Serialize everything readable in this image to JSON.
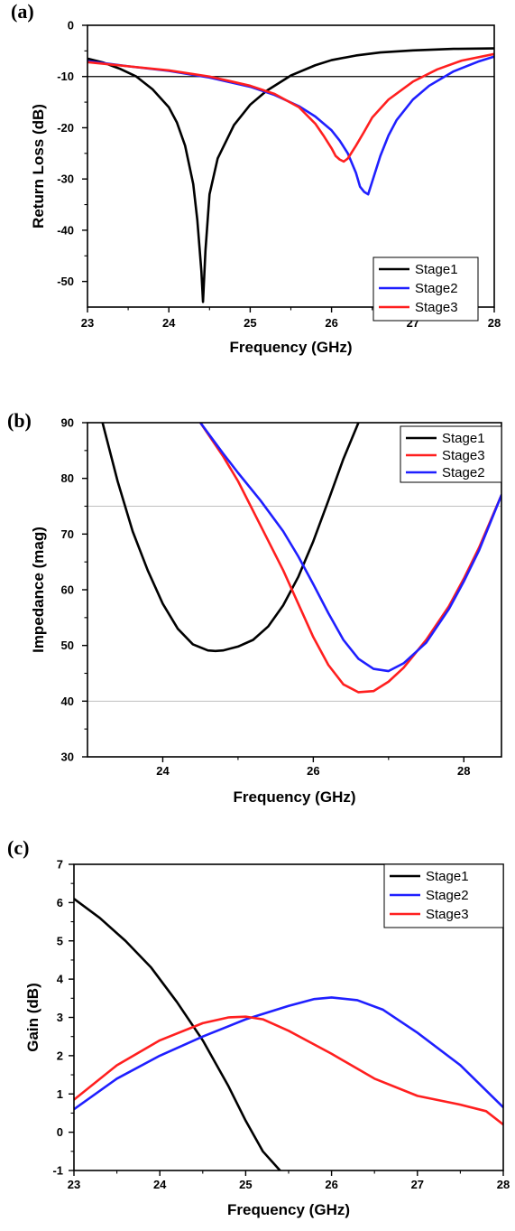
{
  "colors": {
    "stage1": "#000000",
    "stage2": "#1f1fff",
    "stage3": "#ff1f1f",
    "refline": "#bfbfbf"
  },
  "chart_data": [
    {
      "panel": "(a)",
      "type": "line",
      "xlabel": "Frequency (GHz)",
      "ylabel": "Return Loss (dB)",
      "xlim": [
        23,
        28
      ],
      "ylim": [
        -55,
        0
      ],
      "xticks": [
        23,
        24,
        25,
        26,
        27,
        28
      ],
      "yticks": [
        0,
        -10,
        -20,
        -30,
        -40,
        -50
      ],
      "reference_lines": [
        -10
      ],
      "legend_position": "bottom-right",
      "series": [
        {
          "name": "Stage1",
          "color": "#000000",
          "x": [
            23.0,
            23.2,
            23.4,
            23.6,
            23.8,
            24.0,
            24.1,
            24.2,
            24.3,
            24.35,
            24.4,
            24.42,
            24.45,
            24.5,
            24.6,
            24.8,
            25.0,
            25.2,
            25.5,
            25.8,
            26.0,
            26.3,
            26.6,
            27.0,
            27.5,
            28.0
          ],
          "y": [
            -6.5,
            -7.3,
            -8.5,
            -10.0,
            -12.5,
            -16.0,
            -19.0,
            -23.5,
            -31.0,
            -38.0,
            -48.0,
            -54.0,
            -44.0,
            -33.0,
            -26.0,
            -19.5,
            -15.5,
            -12.8,
            -9.8,
            -7.8,
            -6.8,
            -5.9,
            -5.3,
            -4.9,
            -4.6,
            -4.5
          ]
        },
        {
          "name": "Stage2",
          "color": "#1f1fff",
          "x": [
            23.0,
            23.5,
            24.0,
            24.5,
            25.0,
            25.3,
            25.6,
            25.8,
            26.0,
            26.1,
            26.2,
            26.3,
            26.35,
            26.4,
            26.45,
            26.5,
            26.6,
            26.7,
            26.8,
            27.0,
            27.2,
            27.5,
            27.8,
            28.0
          ],
          "y": [
            -7.0,
            -8.0,
            -8.9,
            -10.2,
            -12.0,
            -13.6,
            -15.8,
            -17.8,
            -20.5,
            -22.5,
            -25.0,
            -28.8,
            -31.5,
            -32.5,
            -33.0,
            -30.5,
            -25.5,
            -21.5,
            -18.5,
            -14.5,
            -11.8,
            -9.0,
            -7.1,
            -6.1
          ]
        },
        {
          "name": "Stage3",
          "color": "#ff1f1f",
          "x": [
            23.0,
            23.5,
            24.0,
            24.5,
            25.0,
            25.3,
            25.6,
            25.8,
            25.9,
            26.0,
            26.05,
            26.1,
            26.15,
            26.2,
            26.3,
            26.4,
            26.5,
            26.7,
            27.0,
            27.3,
            27.6,
            28.0
          ],
          "y": [
            -7.2,
            -8.0,
            -8.8,
            -10.0,
            -11.8,
            -13.4,
            -16.0,
            -19.2,
            -21.5,
            -24.0,
            -25.5,
            -26.2,
            -26.6,
            -26.0,
            -23.5,
            -20.8,
            -18.0,
            -14.5,
            -11.0,
            -8.6,
            -6.9,
            -5.6
          ]
        }
      ]
    },
    {
      "panel": "(b)",
      "type": "line",
      "xlabel": "Frequency (GHz)",
      "ylabel": "Impedance (mag)",
      "xlim": [
        23,
        28.5
      ],
      "ylim": [
        30,
        90
      ],
      "xticks": [
        24,
        26,
        28
      ],
      "yticks": [
        30,
        40,
        50,
        60,
        70,
        80,
        90
      ],
      "reference_lines": [
        75,
        40
      ],
      "legend_position": "top-right",
      "series": [
        {
          "name": "Stage1",
          "color": "#000000",
          "x": [
            23.2,
            23.4,
            23.6,
            23.8,
            24.0,
            24.2,
            24.4,
            24.6,
            24.7,
            24.8,
            25.0,
            25.2,
            25.4,
            25.6,
            25.8,
            26.0,
            26.2,
            26.4,
            26.6
          ],
          "y": [
            90.0,
            79.5,
            70.5,
            63.5,
            57.5,
            53.0,
            50.2,
            49.1,
            49.0,
            49.1,
            49.8,
            51.0,
            53.4,
            57.2,
            62.3,
            68.7,
            76.0,
            83.5,
            90.0
          ]
        },
        {
          "name": "Stage3",
          "color": "#ff1f1f",
          "x": [
            24.5,
            24.8,
            25.0,
            25.3,
            25.6,
            25.8,
            26.0,
            26.2,
            26.4,
            26.6,
            26.8,
            27.0,
            27.2,
            27.5,
            27.8,
            28.0,
            28.2,
            28.5
          ],
          "y": [
            90.0,
            84.0,
            79.5,
            71.5,
            63.5,
            57.5,
            51.5,
            46.5,
            43.0,
            41.6,
            41.8,
            43.5,
            46.0,
            51.0,
            57.0,
            62.0,
            67.5,
            77.0
          ]
        },
        {
          "name": "Stage2",
          "color": "#1f1fff",
          "x": [
            24.5,
            24.8,
            25.0,
            25.3,
            25.6,
            25.8,
            26.0,
            26.2,
            26.4,
            26.6,
            26.8,
            27.0,
            27.2,
            27.5,
            27.8,
            28.0,
            28.2,
            28.5
          ],
          "y": [
            90.0,
            84.5,
            81.0,
            76.0,
            70.5,
            66.0,
            61.0,
            55.8,
            51.0,
            47.6,
            45.8,
            45.4,
            46.8,
            50.5,
            56.5,
            61.5,
            67.0,
            77.0
          ]
        }
      ]
    },
    {
      "panel": "(c)",
      "type": "line",
      "xlabel": "Frequency (GHz)",
      "ylabel": "Gain (dB)",
      "xlim": [
        23,
        28
      ],
      "ylim": [
        -1,
        7
      ],
      "xticks": [
        23,
        24,
        25,
        26,
        27,
        28
      ],
      "yticks": [
        -1,
        0,
        1,
        2,
        3,
        4,
        5,
        6,
        7
      ],
      "reference_lines": [],
      "legend_position": "top-right",
      "series": [
        {
          "name": "Stage1",
          "color": "#000000",
          "x": [
            23.0,
            23.3,
            23.6,
            23.9,
            24.2,
            24.5,
            24.8,
            25.0,
            25.2,
            25.4
          ],
          "y": [
            6.1,
            5.6,
            5.0,
            4.3,
            3.4,
            2.4,
            1.2,
            0.3,
            -0.5,
            -1.0
          ]
        },
        {
          "name": "Stage2",
          "color": "#1f1fff",
          "x": [
            23.0,
            23.5,
            24.0,
            24.5,
            25.0,
            25.5,
            25.8,
            26.0,
            26.3,
            26.6,
            27.0,
            27.5,
            28.0
          ],
          "y": [
            0.6,
            1.4,
            2.0,
            2.5,
            2.95,
            3.3,
            3.48,
            3.52,
            3.45,
            3.2,
            2.6,
            1.75,
            0.65
          ]
        },
        {
          "name": "Stage3",
          "color": "#ff1f1f",
          "x": [
            23.0,
            23.5,
            24.0,
            24.5,
            24.8,
            25.0,
            25.2,
            25.5,
            26.0,
            26.5,
            27.0,
            27.5,
            27.8,
            28.0
          ],
          "y": [
            0.85,
            1.75,
            2.4,
            2.85,
            3.0,
            3.02,
            2.95,
            2.65,
            2.05,
            1.4,
            0.95,
            0.72,
            0.55,
            0.2
          ]
        }
      ]
    }
  ]
}
